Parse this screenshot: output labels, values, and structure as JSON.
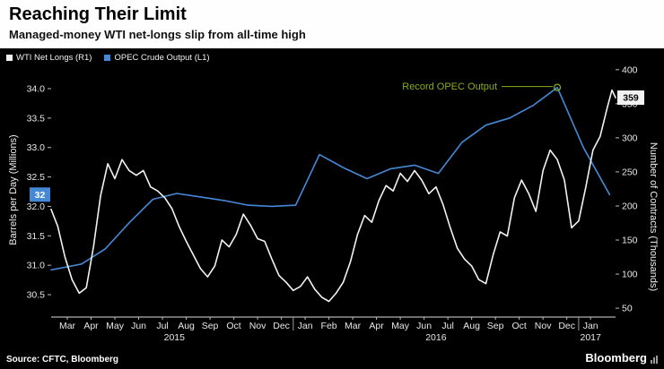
{
  "header": {
    "title": "Reaching Their Limit",
    "subtitle": "Managed-money WTI net-longs slip from all-time high"
  },
  "legend": [
    {
      "label": "WTI Net Longs (R1)",
      "color": "#f2f2f2"
    },
    {
      "label": "OPEC Crude Output (L1)",
      "color": "#4589d6"
    }
  ],
  "annotation": {
    "text": "Record OPEC Output",
    "color": "#8aab1d"
  },
  "value_labels": [
    {
      "text": "32",
      "axis": "left",
      "value": 32.2,
      "bg": "#4589d6",
      "fg": "#ffffff"
    },
    {
      "text": "359",
      "axis": "right",
      "value": 359,
      "bg": "#f2f2f2",
      "fg": "#000000"
    }
  ],
  "footer": {
    "source": "Source: CFTC, Bloomberg",
    "brand": "Bloomberg"
  },
  "colors": {
    "background": "#000000",
    "header_bg": "#fefefe",
    "axis_text": "#e8e8e8"
  },
  "chart_data": {
    "type": "line",
    "title": "Reaching Their Limit",
    "subtitle": "Managed-money WTI net-longs slip from all-time high",
    "x_domain": [
      -0.68,
      23.05
    ],
    "months": [
      "Mar",
      "Apr",
      "May",
      "Jun",
      "Jul",
      "Aug",
      "Sep",
      "Oct",
      "Nov",
      "Dec",
      "Jan",
      "Feb",
      "Mar",
      "Apr",
      "May",
      "Jun",
      "Jul",
      "Aug",
      "Sep",
      "Oct",
      "Nov",
      "Dec",
      "Jan"
    ],
    "years": [
      {
        "label": "2015",
        "center": 4.5
      },
      {
        "label": "2016",
        "center": 15.5
      },
      {
        "label": "2017",
        "center": 22
      }
    ],
    "year_dividers": [
      9.5,
      21.5
    ],
    "left_axis": {
      "label": "Barrels per Day (Millions)",
      "range": [
        30.12,
        34.38
      ],
      "ticks": [
        30.5,
        31.0,
        31.5,
        32.0,
        32.5,
        33.0,
        33.5,
        34.0
      ],
      "format": "1dp"
    },
    "right_axis": {
      "label": "Number of Contracts (Thousands)",
      "range": [
        37,
        405
      ],
      "ticks": [
        50,
        100,
        150,
        200,
        250,
        300,
        350,
        400
      ],
      "format": "int"
    },
    "series": [
      {
        "name": "OPEC Crude Output (L1)",
        "id": "opec-output-line",
        "axis": "left",
        "color": "#4589d6",
        "unit": "million barrels per day",
        "points": [
          [
            -0.68,
            30.92
          ],
          [
            0.6,
            31.02
          ],
          [
            1.6,
            31.28
          ],
          [
            2.6,
            31.72
          ],
          [
            3.6,
            32.12
          ],
          [
            4.6,
            32.22
          ],
          [
            5.6,
            32.16
          ],
          [
            6.6,
            32.1
          ],
          [
            7.6,
            32.02
          ],
          [
            8.6,
            32.0
          ],
          [
            9.6,
            32.02
          ],
          [
            10.6,
            32.88
          ],
          [
            11.6,
            32.66
          ],
          [
            12.6,
            32.47
          ],
          [
            13.6,
            32.64
          ],
          [
            14.6,
            32.7
          ],
          [
            15.6,
            32.56
          ],
          [
            16.6,
            33.09
          ],
          [
            17.6,
            33.38
          ],
          [
            18.6,
            33.5
          ],
          [
            19.6,
            33.72
          ],
          [
            20.6,
            34.02
          ],
          [
            21.7,
            33.0
          ],
          [
            22.8,
            32.2
          ]
        ]
      },
      {
        "name": "WTI Net Longs (R1)",
        "id": "wti-net-longs-line",
        "axis": "right",
        "color": "#f2f2f2",
        "unit": "thousand contracts",
        "points": [
          [
            -0.68,
            195
          ],
          [
            -0.4,
            170
          ],
          [
            -0.1,
            125
          ],
          [
            0.2,
            92
          ],
          [
            0.5,
            72
          ],
          [
            0.8,
            80
          ],
          [
            1.1,
            140
          ],
          [
            1.4,
            215
          ],
          [
            1.7,
            262
          ],
          [
            2.0,
            240
          ],
          [
            2.3,
            268
          ],
          [
            2.6,
            252
          ],
          [
            2.9,
            245
          ],
          [
            3.2,
            252
          ],
          [
            3.5,
            228
          ],
          [
            3.8,
            222
          ],
          [
            4.1,
            212
          ],
          [
            4.4,
            196
          ],
          [
            4.7,
            170
          ],
          [
            5.0,
            148
          ],
          [
            5.3,
            128
          ],
          [
            5.6,
            108
          ],
          [
            5.9,
            96
          ],
          [
            6.2,
            112
          ],
          [
            6.5,
            150
          ],
          [
            6.8,
            140
          ],
          [
            7.1,
            158
          ],
          [
            7.4,
            188
          ],
          [
            7.7,
            172
          ],
          [
            8.0,
            152
          ],
          [
            8.3,
            148
          ],
          [
            8.6,
            122
          ],
          [
            8.9,
            98
          ],
          [
            9.2,
            88
          ],
          [
            9.5,
            76
          ],
          [
            9.8,
            82
          ],
          [
            10.1,
            96
          ],
          [
            10.4,
            78
          ],
          [
            10.7,
            66
          ],
          [
            11.0,
            60
          ],
          [
            11.3,
            72
          ],
          [
            11.6,
            88
          ],
          [
            11.9,
            118
          ],
          [
            12.2,
            158
          ],
          [
            12.5,
            186
          ],
          [
            12.8,
            176
          ],
          [
            13.1,
            208
          ],
          [
            13.4,
            230
          ],
          [
            13.7,
            222
          ],
          [
            14.0,
            248
          ],
          [
            14.3,
            236
          ],
          [
            14.6,
            252
          ],
          [
            14.9,
            238
          ],
          [
            15.2,
            218
          ],
          [
            15.5,
            228
          ],
          [
            15.8,
            202
          ],
          [
            16.1,
            168
          ],
          [
            16.4,
            138
          ],
          [
            16.7,
            122
          ],
          [
            17.0,
            112
          ],
          [
            17.3,
            92
          ],
          [
            17.6,
            86
          ],
          [
            17.9,
            128
          ],
          [
            18.2,
            162
          ],
          [
            18.5,
            156
          ],
          [
            18.8,
            212
          ],
          [
            19.1,
            238
          ],
          [
            19.4,
            218
          ],
          [
            19.7,
            192
          ],
          [
            20.0,
            252
          ],
          [
            20.3,
            282
          ],
          [
            20.6,
            268
          ],
          [
            20.9,
            238
          ],
          [
            21.2,
            168
          ],
          [
            21.5,
            178
          ],
          [
            21.8,
            228
          ],
          [
            22.1,
            282
          ],
          [
            22.4,
            302
          ],
          [
            22.7,
            344
          ],
          [
            22.9,
            370
          ],
          [
            23.05,
            359
          ]
        ]
      }
    ],
    "annotation_point": {
      "x": 20.6,
      "value": 34.02,
      "axis": "left"
    }
  }
}
